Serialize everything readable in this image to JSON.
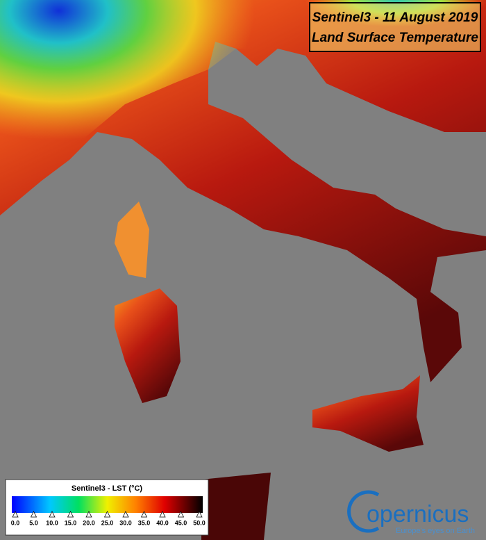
{
  "header": {
    "title_line1": "Sentinel3 - 11 August 2019",
    "title_line2": "Land Surface Temperature"
  },
  "legend": {
    "title": "Sentinel3 - LST (°C)",
    "range": [
      0,
      50
    ],
    "ticks": [
      {
        "value": 0,
        "label": "0.0"
      },
      {
        "value": 5,
        "label": "5.0"
      },
      {
        "value": 10,
        "label": "10.0"
      },
      {
        "value": 15,
        "label": "15.0"
      },
      {
        "value": 20,
        "label": "20.0"
      },
      {
        "value": 25,
        "label": "25.0"
      },
      {
        "value": 30,
        "label": "30.0"
      },
      {
        "value": 35,
        "label": "35.0"
      },
      {
        "value": 40,
        "label": "40.0"
      },
      {
        "value": 45,
        "label": "45.0"
      },
      {
        "value": 50,
        "label": "50.0"
      }
    ]
  },
  "logo": {
    "name": "opernicus",
    "tagline": "Europe's eyes on Earth"
  }
}
